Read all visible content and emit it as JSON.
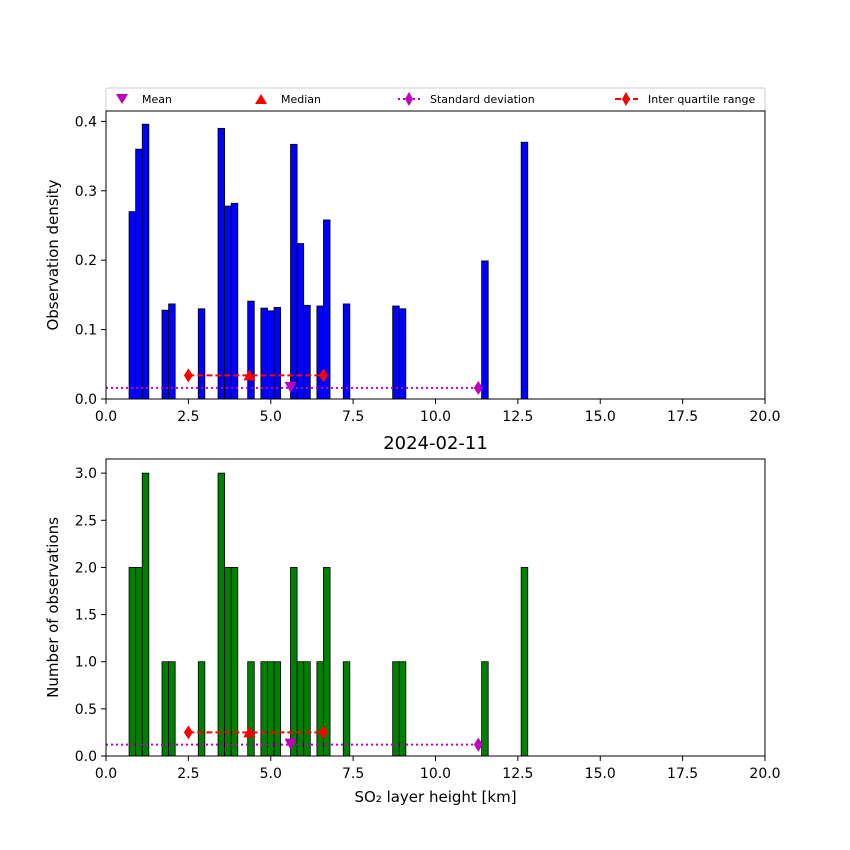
{
  "chart_data": [
    {
      "type": "bar",
      "subtitle": "",
      "xlabel": "",
      "ylabel": "Observation density",
      "xlim": [
        0,
        20
      ],
      "ylim": [
        0,
        0.415
      ],
      "xticks": [
        "0.0",
        "2.5",
        "5.0",
        "7.5",
        "10.0",
        "12.5",
        "15.0",
        "17.5",
        "20.0"
      ],
      "yticks": [
        "0.0",
        "0.1",
        "0.2",
        "0.3",
        "0.4"
      ],
      "bar_color": "#0000ff",
      "bin_width": 0.2,
      "bins": [
        {
          "x": 0.8,
          "v": 0.27
        },
        {
          "x": 1.0,
          "v": 0.36
        },
        {
          "x": 1.2,
          "v": 0.396
        },
        {
          "x": 1.8,
          "v": 0.128
        },
        {
          "x": 2.0,
          "v": 0.137
        },
        {
          "x": 2.9,
          "v": 0.13
        },
        {
          "x": 3.5,
          "v": 0.39
        },
        {
          "x": 3.7,
          "v": 0.278
        },
        {
          "x": 3.9,
          "v": 0.282
        },
        {
          "x": 4.4,
          "v": 0.141
        },
        {
          "x": 4.8,
          "v": 0.131
        },
        {
          "x": 5.0,
          "v": 0.127
        },
        {
          "x": 5.2,
          "v": 0.132
        },
        {
          "x": 5.7,
          "v": 0.367
        },
        {
          "x": 5.9,
          "v": 0.224
        },
        {
          "x": 6.1,
          "v": 0.135
        },
        {
          "x": 6.5,
          "v": 0.134
        },
        {
          "x": 6.7,
          "v": 0.258
        },
        {
          "x": 7.3,
          "v": 0.137
        },
        {
          "x": 8.8,
          "v": 0.134
        },
        {
          "x": 9.0,
          "v": 0.13
        },
        {
          "x": 11.5,
          "v": 0.199
        },
        {
          "x": 12.7,
          "v": 0.37
        }
      ],
      "stats": {
        "mean": 5.6,
        "median": 4.35,
        "sd_range": [
          0.0,
          11.3
        ],
        "iqr_range": [
          2.5,
          6.6
        ],
        "sd_y": 0.016,
        "iqr_y": 0.034
      }
    },
    {
      "type": "bar",
      "subtitle": "2024-02-11",
      "xlabel": "SO₂ layer height [km]",
      "ylabel": "Number of observations",
      "xlim": [
        0,
        20
      ],
      "ylim": [
        0,
        3.15
      ],
      "xticks": [
        "0.0",
        "2.5",
        "5.0",
        "7.5",
        "10.0",
        "12.5",
        "15.0",
        "17.5",
        "20.0"
      ],
      "yticks": [
        "0.0",
        "0.5",
        "1.0",
        "1.5",
        "2.0",
        "2.5",
        "3.0"
      ],
      "bar_color": "#008000",
      "bin_width": 0.2,
      "bins": [
        {
          "x": 0.8,
          "v": 2
        },
        {
          "x": 1.0,
          "v": 2
        },
        {
          "x": 1.2,
          "v": 3
        },
        {
          "x": 1.8,
          "v": 1
        },
        {
          "x": 2.0,
          "v": 1
        },
        {
          "x": 2.9,
          "v": 1
        },
        {
          "x": 3.5,
          "v": 3
        },
        {
          "x": 3.7,
          "v": 2
        },
        {
          "x": 3.9,
          "v": 2
        },
        {
          "x": 4.4,
          "v": 1
        },
        {
          "x": 4.8,
          "v": 1
        },
        {
          "x": 5.0,
          "v": 1
        },
        {
          "x": 5.2,
          "v": 1
        },
        {
          "x": 5.7,
          "v": 2
        },
        {
          "x": 5.9,
          "v": 1
        },
        {
          "x": 6.1,
          "v": 1
        },
        {
          "x": 6.5,
          "v": 1
        },
        {
          "x": 6.7,
          "v": 2
        },
        {
          "x": 7.3,
          "v": 1
        },
        {
          "x": 8.8,
          "v": 1
        },
        {
          "x": 9.0,
          "v": 1
        },
        {
          "x": 11.5,
          "v": 1
        },
        {
          "x": 12.7,
          "v": 2
        }
      ],
      "stats": {
        "mean": 5.6,
        "median": 4.35,
        "sd_range": [
          0.0,
          11.3
        ],
        "iqr_range": [
          2.5,
          6.6
        ],
        "sd_y": 0.12,
        "iqr_y": 0.25
      }
    }
  ],
  "legend": {
    "mean": "Mean",
    "median": "Median",
    "std": "Standard deviation",
    "iqr": "Inter quartile range"
  },
  "colors": {
    "mean": "#bf00bf",
    "median": "#ff0000",
    "std": "#bf00bf",
    "iqr": "#ff0000"
  }
}
